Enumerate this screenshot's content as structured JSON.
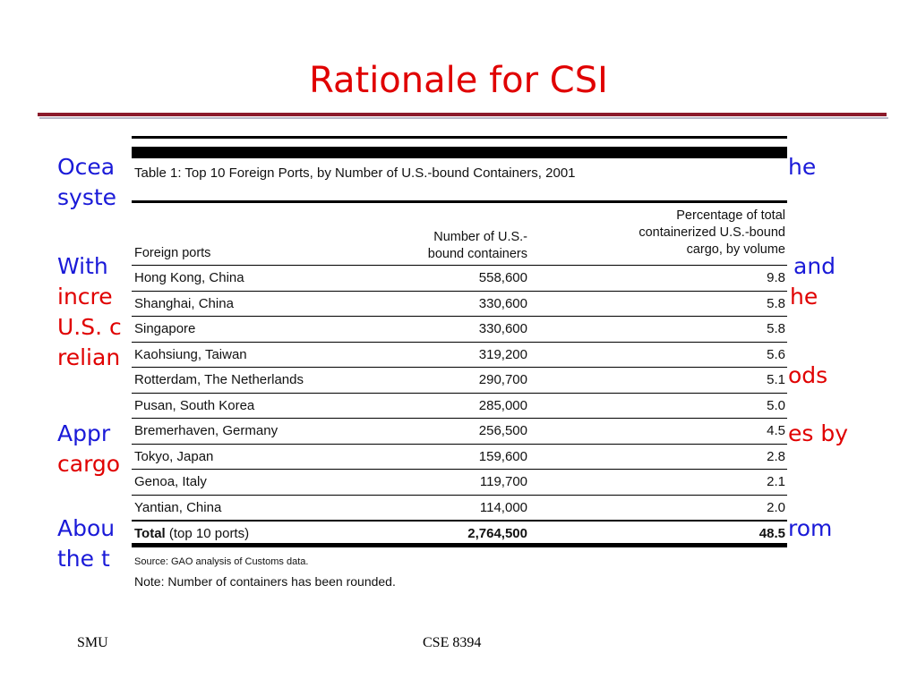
{
  "slide": {
    "title": "Rationale for CSI",
    "footer_left": "SMU",
    "footer_center": "CSE 8394"
  },
  "bullets": {
    "b1_line1_left": "Ocea",
    "b1_line1_right": "he",
    "b1_line2_left": "syste",
    "b2_line1_left": "With",
    "b2_line1_right": "and",
    "b2_line2_left": "incre",
    "b2_line2_right": "he",
    "b2_line3_left": "U.S. c",
    "b2_line4_left": "relian",
    "b2_line4_right": "ods",
    "b3_line1_left": "Appr",
    "b3_line1_right": "es by",
    "b3_line2_left": "cargo",
    "b4_line1_left": "Abou",
    "b4_line1_right": "rom",
    "b4_line2_left": "the t"
  },
  "table": {
    "title": "Table 1:  Top 10 Foreign Ports, by Number of U.S.-bound Containers, 2001",
    "headers": {
      "ports": "Foreign ports",
      "count_l1": "Number of U.S.-",
      "count_l2": "bound containers",
      "pct_l1": "Percentage of total",
      "pct_l2": "containerized U.S.-bound",
      "pct_l3": "cargo, by volume"
    },
    "rows": [
      {
        "port": "Hong Kong, China",
        "containers": "558,600",
        "pct": "9.8"
      },
      {
        "port": "Shanghai, China",
        "containers": "330,600",
        "pct": "5.8"
      },
      {
        "port": "Singapore",
        "containers": "330,600",
        "pct": "5.8"
      },
      {
        "port": "Kaohsiung, Taiwan",
        "containers": "319,200",
        "pct": "5.6"
      },
      {
        "port": "Rotterdam, The Netherlands",
        "containers": "290,700",
        "pct": "5.1"
      },
      {
        "port": "Pusan, South Korea",
        "containers": "285,000",
        "pct": "5.0"
      },
      {
        "port": "Bremerhaven, Germany",
        "containers": "256,500",
        "pct": "4.5"
      },
      {
        "port": "Tokyo, Japan",
        "containers": "159,600",
        "pct": "2.8"
      },
      {
        "port": "Genoa, Italy",
        "containers": "119,700",
        "pct": "2.1"
      },
      {
        "port": "Yantian, China",
        "containers": "114,000",
        "pct": "2.0"
      }
    ],
    "total": {
      "label_bold": "Total",
      "label_rest": " (top 10 ports)",
      "containers": "2,764,500",
      "pct": "48.5"
    },
    "source": "Source:  GAO analysis of Customs data.",
    "note": "Note:  Number of containers has been rounded."
  }
}
